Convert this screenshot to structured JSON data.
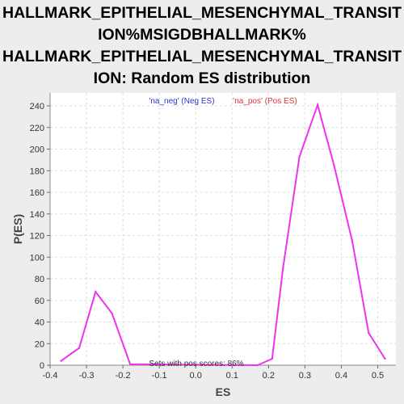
{
  "colors": {
    "background": "#ededed",
    "plot_background": "#ffffff",
    "line": "#ee33ee",
    "neg_legend": "#3333cc",
    "pos_legend": "#dd3333"
  },
  "chart_data": {
    "type": "line",
    "title_lines": [
      "HALLMARK_EPITHELIAL_MESENCHYMAL_TRANSIT",
      "ION%MSIGDBHALLMARK%",
      "HALLMARK_EPITHELIAL_MESENCHYMAL_TRANSIT",
      "ION: Random ES distribution"
    ],
    "xlabel": "ES",
    "ylabel": "P(ES)",
    "xlim": [
      -0.4,
      0.55
    ],
    "ylim": [
      0,
      252
    ],
    "xticks": [
      -0.4,
      -0.3,
      -0.2,
      -0.1,
      0.0,
      0.1,
      0.2,
      0.3,
      0.4,
      0.5
    ],
    "xtick_labels": [
      "-0.4",
      "-0.3",
      "-0.2",
      "-0.1",
      "0.0",
      "0.1",
      "0.2",
      "0.3",
      "0.4",
      "0.5"
    ],
    "yticks": [
      0,
      20,
      40,
      60,
      80,
      100,
      120,
      140,
      160,
      180,
      200,
      220,
      240
    ],
    "grid": true,
    "legend": {
      "placement": "top",
      "entries": [
        "'na_neg' (Neg ES)",
        "'na_pos' (Pos ES)"
      ]
    },
    "annotation": "Sets with pos scores: 86%",
    "series": [
      {
        "x": [
          -0.37,
          -0.32,
          -0.275,
          -0.23,
          -0.18,
          0.17,
          0.21,
          0.24,
          0.285,
          0.335,
          0.38,
          0.43,
          0.475,
          0.52
        ],
        "y": [
          4,
          16,
          68,
          48,
          1,
          0,
          6,
          90,
          193,
          241,
          185,
          115,
          30,
          6
        ]
      }
    ]
  }
}
